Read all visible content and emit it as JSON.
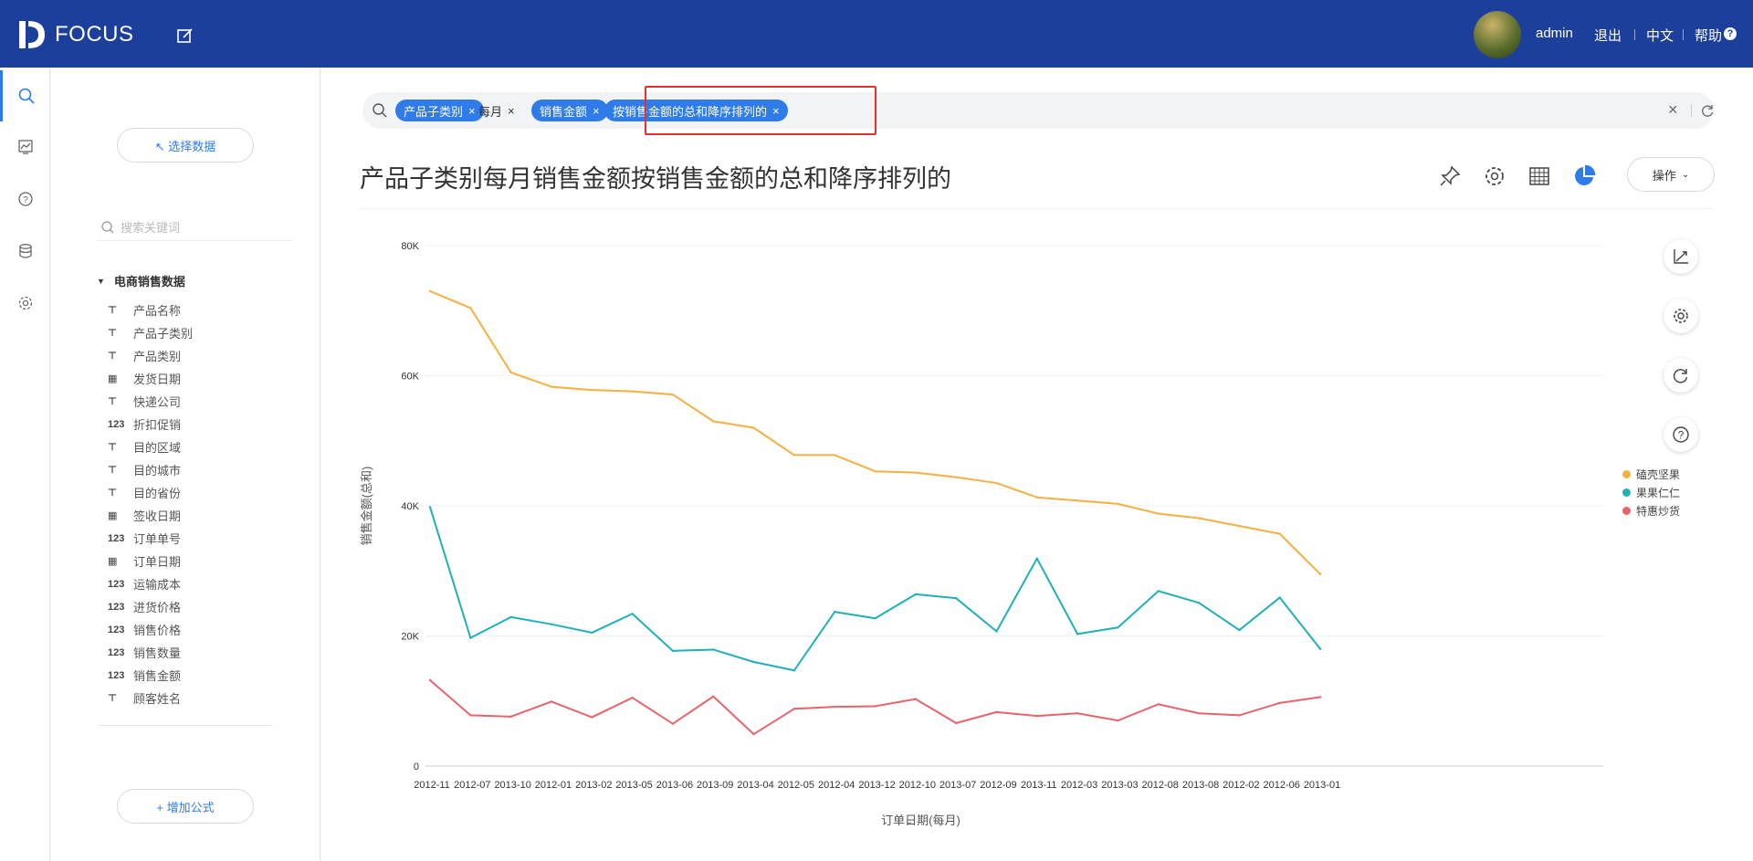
{
  "app": {
    "logo_text": "FOCUS"
  },
  "topbar": {
    "username": "admin",
    "logout": "退出",
    "language": "中文",
    "help": "帮助"
  },
  "sidebar": {
    "select_data": "↖ 选择数据",
    "search_placeholder": "搜索关键词",
    "dataset": "电商销售数据",
    "fields": [
      {
        "type": "T",
        "label": "产品名称"
      },
      {
        "type": "T",
        "label": "产品子类别"
      },
      {
        "type": "T",
        "label": "产品类别"
      },
      {
        "type": "date",
        "label": "发货日期"
      },
      {
        "type": "T",
        "label": "快递公司"
      },
      {
        "type": "123",
        "label": "折扣促销"
      },
      {
        "type": "T",
        "label": "目的区域"
      },
      {
        "type": "T",
        "label": "目的城市"
      },
      {
        "type": "T",
        "label": "目的省份"
      },
      {
        "type": "date",
        "label": "签收日期"
      },
      {
        "type": "123",
        "label": "订单单号"
      },
      {
        "type": "date",
        "label": "订单日期"
      },
      {
        "type": "123",
        "label": "运输成本"
      },
      {
        "type": "123",
        "label": "进货价格"
      },
      {
        "type": "123",
        "label": "销售价格"
      },
      {
        "type": "123",
        "label": "销售数量"
      },
      {
        "type": "123",
        "label": "销售金额"
      },
      {
        "type": "T",
        "label": "顾客姓名"
      }
    ],
    "add_formula": "+ 增加公式"
  },
  "search": {
    "tags": [
      {
        "label": "产品子类别",
        "style": "blue"
      },
      {
        "label": "每月",
        "style": "plain"
      },
      {
        "label": "销售金额",
        "style": "blue"
      },
      {
        "label": "按销售金额的总和降序排列的",
        "style": "blue"
      }
    ]
  },
  "main": {
    "title": "产品子类别每月销售金额按销售金额的总和降序排列的",
    "operation": "操作"
  },
  "colors": {
    "primary": "#2f7bea",
    "topbar": "#1c3f9b",
    "highlight": "#e53030"
  },
  "chart_data": {
    "type": "line",
    "xlabel": "订单日期(每月)",
    "ylabel": "销售金额(总和)",
    "ylim": [
      0,
      80000
    ],
    "yticks": [
      "0",
      "20K",
      "40K",
      "60K",
      "80K"
    ],
    "ytick_values": [
      0,
      20000,
      40000,
      60000,
      80000
    ],
    "categories": [
      "2012-11",
      "2012-07",
      "2013-10",
      "2012-01",
      "2013-02",
      "2013-05",
      "2013-06",
      "2013-09",
      "2013-04",
      "2012-05",
      "2012-04",
      "2013-12",
      "2012-10",
      "2013-07",
      "2012-09",
      "2013-11",
      "2012-03",
      "2013-03",
      "2012-08",
      "2013-08",
      "2012-02",
      "2012-06",
      "2013-01"
    ],
    "series": [
      {
        "name": "磕壳坚果",
        "color": "#f5b041",
        "values": [
          73000,
          70400,
          60500,
          58300,
          57800,
          57600,
          57100,
          53000,
          52000,
          47800,
          47800,
          45300,
          45100,
          44400,
          43500,
          41300,
          40800,
          40300,
          38800,
          38100,
          36900,
          35700,
          29500
        ]
      },
      {
        "name": "果果仁仁",
        "color": "#1fb0b8",
        "values": [
          39800,
          19700,
          22900,
          21800,
          20500,
          23400,
          17700,
          17900,
          16000,
          14700,
          23700,
          22700,
          26400,
          25800,
          20700,
          31900,
          20300,
          21300,
          26900,
          25100,
          20900,
          25900,
          18000
        ]
      },
      {
        "name": "特惠炒货",
        "color": "#e8636b",
        "values": [
          13200,
          7800,
          7600,
          9900,
          7500,
          10500,
          6500,
          10700,
          4900,
          8800,
          9100,
          9200,
          10300,
          6600,
          8300,
          7700,
          8100,
          7000,
          9500,
          8100,
          7800,
          9700,
          10600
        ]
      }
    ]
  }
}
